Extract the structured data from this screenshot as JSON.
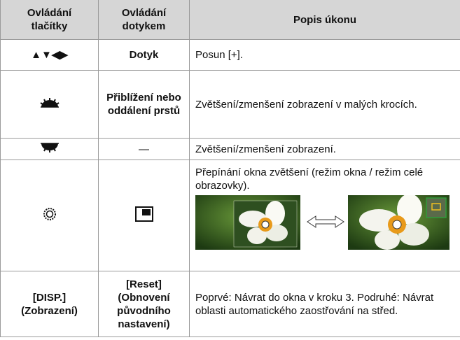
{
  "table": {
    "header": [
      "Ovládání tlačítky",
      "Ovládání dotykem",
      "Popis úkonu"
    ],
    "rows": [
      {
        "control": "▲▼◀▶",
        "touch": "Dotyk",
        "description": "Posun [+]."
      },
      {
        "touch": "Přiblížení nebo oddálení prstů",
        "description": "Zvětšení/zmenšení zobrazení v malých krocích."
      },
      {
        "touch": "—",
        "description": "Zvětšení/zmenšení zobrazení."
      },
      {
        "description": "Přepínání okna zvětšení (režim okna / režim celé obrazovky)."
      },
      {
        "control": "[DISP.] (Zobrazení)",
        "touch": "[Reset] (Obnovení původního nastavení)",
        "description": "Poprvé: Návrat do okna v kroku 3. Podruhé: Návrat oblasti automatického zaostřování na střed."
      }
    ]
  }
}
